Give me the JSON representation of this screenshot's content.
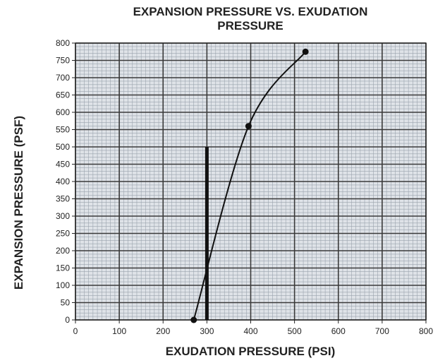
{
  "chart_data": {
    "type": "line",
    "title_lines": [
      "EXPANSION PRESSURE VS. EXUDATION",
      "PRESSURE"
    ],
    "xlabel": "EXUDATION PRESSURE (PSI)",
    "ylabel": "EXPANSION PRESSURE (PSF)",
    "xlim": [
      0,
      800
    ],
    "ylim": [
      0,
      800
    ],
    "x_ticks": [
      0,
      100,
      200,
      300,
      400,
      500,
      600,
      700,
      800
    ],
    "y_ticks": [
      0,
      50,
      100,
      150,
      200,
      250,
      300,
      350,
      400,
      450,
      500,
      550,
      600,
      650,
      700,
      750,
      800
    ],
    "grid": true,
    "legend": "none",
    "series": [
      {
        "x": [
          270,
          395,
          525
        ],
        "y": [
          0,
          560,
          775
        ],
        "markers": true,
        "color": "#111111"
      }
    ],
    "reference_line": {
      "x": 300,
      "y_from": 0,
      "y_to": 500,
      "color": "#111111"
    },
    "grid_color": "#3a3a3a",
    "minor_grid_color": "#9aa3ad",
    "plot_background": "#dfe3e8"
  }
}
